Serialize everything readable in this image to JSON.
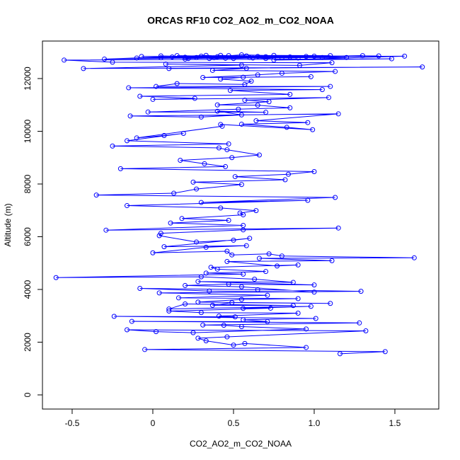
{
  "chart_data": {
    "type": "line",
    "title": "ORCAS RF10 CO2_AO2_m_CO2_NOAA",
    "x_label": "CO2_AO2_m_CO2_NOAA",
    "y_label": "Altitude (m)",
    "xlim": [
      -0.684,
      1.772
    ],
    "ylim": [
      -537,
      13423
    ],
    "xticks": [
      -0.5,
      0,
      0.5,
      {
        "value": 1,
        "label": "1.0"
      },
      1.5
    ],
    "yticks": [
      0,
      2000,
      4000,
      6000,
      8000,
      10000,
      12000
    ],
    "x": [
      1.16,
      1.44,
      -0.05,
      0.95,
      0.57,
      0.5,
      0.33,
      0.28,
      0.46,
      1.32,
      -0.16,
      0.02,
      0.25,
      0.95,
      0.55,
      0.44,
      0.31,
      1.28,
      -0.13,
      0.71,
      0.56,
      1.01,
      -0.24,
      0.51,
      0.41,
      0.9,
      0.3,
      0.1,
      0.73,
      0.56,
      0.98,
      0.1,
      0.2,
      0.87,
      0.37,
      0.49,
      1.1,
      0.28,
      0.55,
      0.9,
      0.16,
      0.71,
      0.04,
      1.29,
      0.65,
      -0.08,
      0.35,
      1.0,
      0.55,
      0.2,
      0.47,
      1.0,
      0.28,
      0.87,
      0.63,
      0.3,
      -0.6,
      0.56,
      0.33,
      0.7,
      0.4,
      0.36,
      0.9,
      0.77,
      0.46,
      1.11,
      0.66,
      1.62,
      0.8,
      0.72,
      0.49,
      0.46,
      0.0,
      0.33,
      0.58,
      0.07,
      0.6,
      0.5,
      0.27,
      0.04,
      0.05,
      0.56,
      1.15,
      -0.29,
      0.56,
      0.11,
      0.47,
      0.18,
      0.56,
      0.54,
      0.64,
      0.42,
      -0.16,
      0.96,
      0.3,
      1.13,
      -0.35,
      0.13,
      0.27,
      0.55,
      0.25,
      0.82,
      0.51,
      0.84,
      1.0,
      -0.2,
      0.45,
      0.32,
      0.17,
      0.49,
      0.66,
      0.46,
      0.41,
      -0.25,
      0.47,
      -0.16,
      0.19,
      0.07,
      -0.1,
      0.43,
      0.42,
      0.99,
      0.83,
      0.55,
      0.96,
      0.64,
      1.15,
      -0.14,
      0.3,
      0.55,
      0.4,
      0.7,
      -0.03,
      0.53,
      0.85,
      0.65,
      0.4,
      0.72,
      0.57,
      1.09,
      0.0,
      0.26,
      -0.08,
      0.85,
      0.48,
      1.05,
      -0.15,
      1.1,
      0.02,
      0.15,
      0.57,
      0.61,
      0.42,
      0.56,
      0.98,
      0.31,
      0.65,
      0.8,
      1.13,
      0.37,
      0.58,
      0.1,
      1.67,
      -0.43,
      0.55,
      0.08,
      0.91,
      1.11,
      -0.25,
      -0.55,
      1.48,
      0.75,
      1.56,
      0.2,
      0.4,
      -0.07,
      1.4,
      0.6,
      -0.3,
      0.33,
      0.7,
      1.0,
      0.05,
      0.47,
      0.85,
      0.22,
      0.55,
      1.2,
      -0.1,
      0.65,
      0.3,
      0.9,
      0.15,
      0.5,
      1.1,
      0.75,
      0.38,
      0.05,
      0.62,
      0.95,
      0.27,
      0.45,
      1.3,
      0.8,
      0.12,
      0.58,
      0.35,
      1.05,
      0.7,
      0.42,
      0.2
    ],
    "series": [
      {
        "color": "#0000ff",
        "values": [
          1560,
          1640,
          1720,
          1800,
          1950,
          1890,
          2050,
          2150,
          2200,
          2430,
          2470,
          2400,
          2360,
          2500,
          2590,
          2640,
          2650,
          2730,
          2790,
          2780,
          2850,
          2900,
          2980,
          2960,
          2990,
          3100,
          3120,
          3180,
          3290,
          3280,
          3360,
          3260,
          3450,
          3390,
          3400,
          3500,
          3470,
          3520,
          3620,
          3650,
          3680,
          3780,
          3870,
          3930,
          3990,
          4040,
          3940,
          3900,
          4100,
          4150,
          4200,
          4170,
          4300,
          4270,
          4390,
          4480,
          4450,
          4580,
          4620,
          4680,
          4770,
          4840,
          4930,
          4890,
          5060,
          5090,
          5180,
          5200,
          5270,
          5350,
          5310,
          5450,
          5390,
          5600,
          5660,
          5620,
          5940,
          5870,
          5800,
          6040,
          6130,
          6260,
          6330,
          6250,
          6430,
          6520,
          6620,
          6690,
          6830,
          6900,
          6990,
          7090,
          7180,
          7380,
          7300,
          7490,
          7580,
          7650,
          7810,
          7980,
          8070,
          8160,
          8280,
          8370,
          8470,
          8580,
          8660,
          8770,
          8900,
          9000,
          9100,
          9300,
          9370,
          9440,
          9520,
          9640,
          9920,
          9840,
          9750,
          10190,
          10260,
          10060,
          10150,
          10270,
          10330,
          10400,
          10660,
          10580,
          10540,
          10620,
          10760,
          10720,
          10730,
          10840,
          10890,
          10990,
          11000,
          11120,
          11180,
          11280,
          11210,
          11250,
          11330,
          11400,
          11550,
          11580,
          11650,
          11700,
          11700,
          11810,
          11780,
          11900,
          11980,
          12050,
          12070,
          12040,
          12140,
          12200,
          12270,
          12310,
          12390,
          12380,
          12440,
          12380,
          12510,
          12550,
          12500,
          12600,
          12620,
          12700,
          12750,
          12700,
          12850,
          12810,
          12830,
          12840,
          12860,
          12800,
          12740,
          12880,
          12760,
          12850,
          12790,
          12870,
          12820,
          12760,
          12900,
          12800,
          12780,
          12840,
          12850,
          12780,
          12870,
          12760,
          12870,
          12880,
          12790,
          12860,
          12780,
          12840,
          12800,
          12770,
          12870,
          12790,
          12820,
          12860,
          12760,
          12800,
          12830,
          12880,
          12740
        ]
      }
    ]
  }
}
